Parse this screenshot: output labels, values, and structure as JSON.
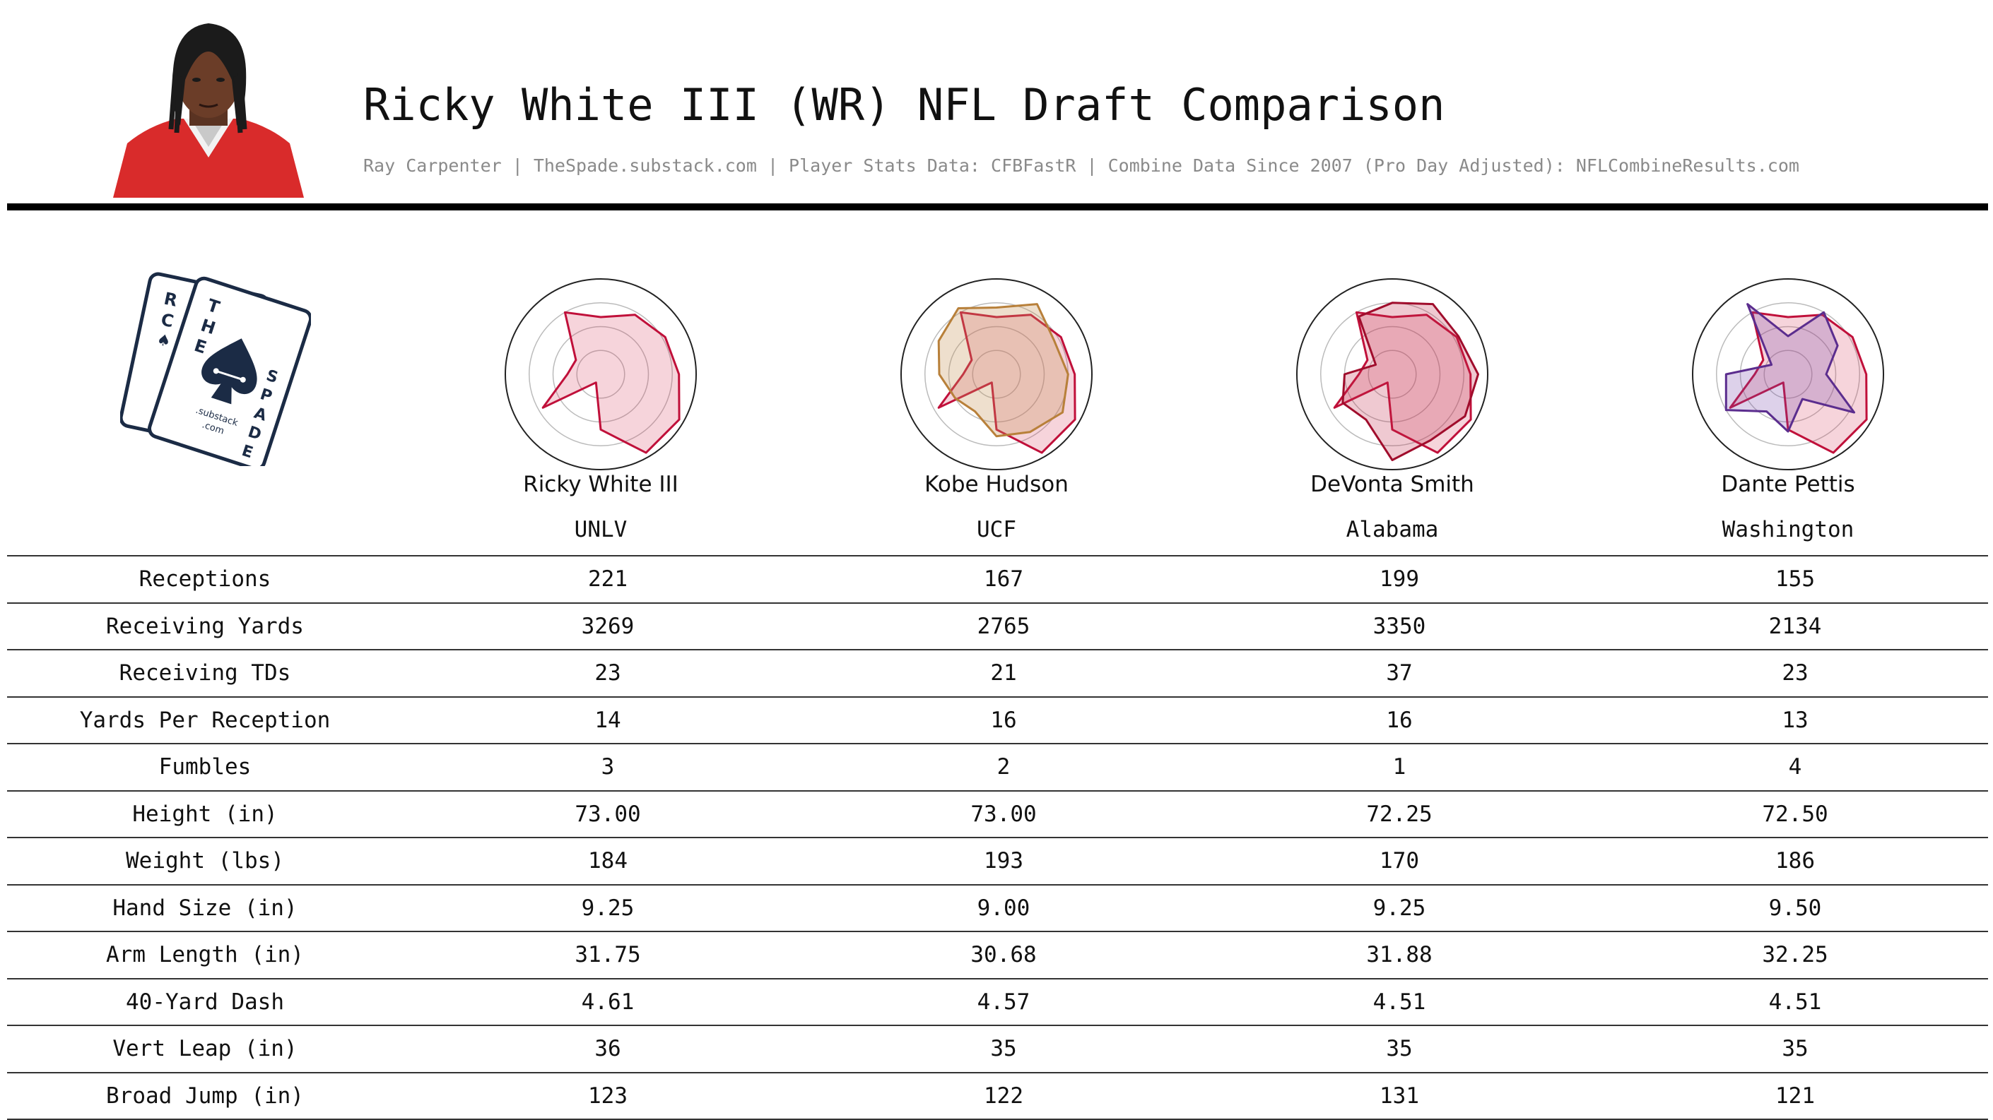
{
  "header": {
    "title": "Ricky White III (WR) NFL Draft Comparison",
    "subtitle": "Ray Carpenter | TheSpade.substack.com | Player Stats Data: CFBFastR | Combine Data Since 2007 (Pro Day Adjusted): NFLCombineResults.com"
  },
  "logo": {
    "text": "THE SPADE .substack .com"
  },
  "colors": {
    "primary": "#c0103a",
    "primary_fill": "rgba(214,60,90,0.22)",
    "comp_hudson": "#b8803a",
    "comp_smith": "#a00d2c",
    "comp_pettis": "#5b2d8e",
    "ring": "#bbbbbb",
    "ring_outer": "#222222"
  },
  "players": [
    {
      "name": "Ricky White III",
      "school": "UNLV"
    },
    {
      "name": "Kobe Hudson",
      "school": "UCF"
    },
    {
      "name": "DeVonta Smith",
      "school": "Alabama"
    },
    {
      "name": "Dante Pettis",
      "school": "Washington"
    }
  ],
  "table": {
    "rows": [
      {
        "label": "Receptions",
        "values": [
          "221",
          "167",
          "199",
          "155"
        ]
      },
      {
        "label": "Receiving Yards",
        "values": [
          "3269",
          "2765",
          "3350",
          "2134"
        ]
      },
      {
        "label": "Receiving TDs",
        "values": [
          "23",
          "21",
          "37",
          "23"
        ]
      },
      {
        "label": "Yards Per Reception",
        "values": [
          "14",
          "16",
          "16",
          "13"
        ]
      },
      {
        "label": "Fumbles",
        "values": [
          "3",
          "2",
          "1",
          "4"
        ]
      },
      {
        "label": "Height (in)",
        "values": [
          "73.00",
          "73.00",
          "72.25",
          "72.50"
        ]
      },
      {
        "label": "Weight (lbs)",
        "values": [
          "184",
          "193",
          "170",
          "186"
        ]
      },
      {
        "label": "Hand Size (in)",
        "values": [
          "9.25",
          "9.00",
          "9.25",
          "9.50"
        ]
      },
      {
        "label": "Arm Length (in)",
        "values": [
          "31.75",
          "30.68",
          "31.88",
          "32.25"
        ]
      },
      {
        "label": "40-Yard Dash",
        "values": [
          "4.61",
          "4.57",
          "4.51",
          "4.51"
        ]
      },
      {
        "label": "Vert Leap (in)",
        "values": [
          "36",
          "35",
          "35",
          "35"
        ]
      },
      {
        "label": "Broad Jump (in)",
        "values": [
          "123",
          "122",
          "131",
          "121"
        ]
      }
    ]
  },
  "chart_data": [
    {
      "type": "radar",
      "player": "Ricky White III",
      "axes": 12,
      "rlim": [
        0,
        1
      ],
      "series": [
        {
          "values": [
            0.6,
            0.72,
            0.78,
            0.82,
            0.95,
            0.95,
            0.58,
            0.1,
            0.7,
            0.35,
            0.3,
            0.75
          ]
        }
      ]
    },
    {
      "type": "radar",
      "player": "Kobe Hudson",
      "axes": 12,
      "rlim": [
        0,
        1
      ],
      "series": [
        {
          "values": [
            0.6,
            0.72,
            0.78,
            0.82,
            0.95,
            0.95,
            0.58,
            0.1,
            0.7,
            0.35,
            0.3,
            0.75
          ]
        },
        {
          "values": [
            0.7,
            0.85,
            0.7,
            0.75,
            0.8,
            0.7,
            0.65,
            0.45,
            0.5,
            0.6,
            0.7,
            0.8
          ]
        }
      ]
    },
    {
      "type": "radar",
      "player": "DeVonta Smith",
      "axes": 12,
      "rlim": [
        0,
        1
      ],
      "series": [
        {
          "values": [
            0.6,
            0.72,
            0.78,
            0.82,
            0.95,
            0.95,
            0.58,
            0.1,
            0.7,
            0.35,
            0.3,
            0.75
          ]
        },
        {
          "values": [
            0.75,
            0.85,
            0.8,
            0.9,
            0.88,
            0.8,
            0.9,
            0.55,
            0.6,
            0.5,
            0.2,
            0.7
          ]
        }
      ]
    },
    {
      "type": "radar",
      "player": "Dante Pettis",
      "axes": 12,
      "rlim": [
        0,
        1
      ],
      "series": [
        {
          "values": [
            0.6,
            0.72,
            0.78,
            0.82,
            0.95,
            0.95,
            0.58,
            0.1,
            0.7,
            0.35,
            0.3,
            0.75
          ]
        },
        {
          "values": [
            0.4,
            0.75,
            0.6,
            0.4,
            0.8,
            0.3,
            0.6,
            0.45,
            0.75,
            0.65,
            0.2,
            0.85
          ]
        }
      ]
    }
  ]
}
